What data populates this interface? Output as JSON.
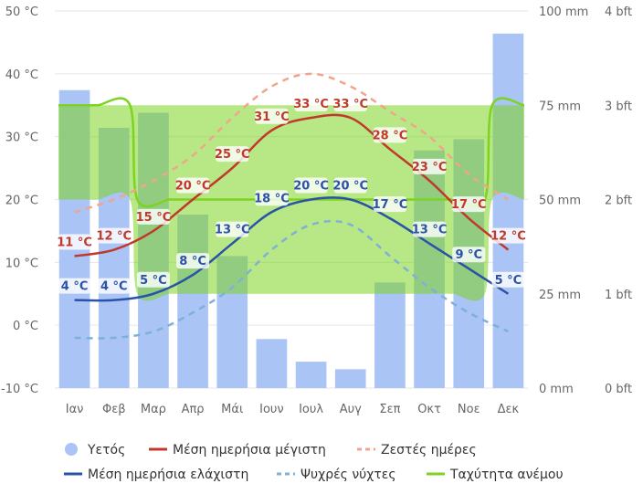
{
  "chart_data": {
    "type": "line",
    "months": [
      "Ιαν",
      "Φεβ",
      "Μαρ",
      "Απρ",
      "Μάι",
      "Ιουν",
      "Ιουλ",
      "Αυγ",
      "Σεπ",
      "Οκτ",
      "Νοε",
      "Δεκ"
    ],
    "temp_axis": {
      "min": -10,
      "max": 50,
      "ticks": [
        "-10 °C",
        "0 °C",
        "10 °C",
        "20 °C",
        "30 °C",
        "40 °C",
        "50 °C"
      ]
    },
    "precip_axis": {
      "min": 0,
      "max": 100,
      "ticks": [
        "0 mm",
        "25 mm",
        "50 mm",
        "75 mm",
        "100 mm"
      ]
    },
    "wind_axis": {
      "min": 0,
      "max": 4,
      "ticks": [
        "0 bft",
        "1 bft",
        "2 bft",
        "3 bft",
        "4 bft"
      ]
    },
    "series": [
      {
        "key": "precip",
        "name": "Υετός",
        "color": "#a9c4f5",
        "values": [
          79,
          69,
          73,
          46,
          35,
          13,
          7,
          5,
          28,
          63,
          66,
          94
        ]
      },
      {
        "key": "max",
        "name": "Μέση ημερήσια μέγιστη",
        "color": "#c0392b",
        "values": [
          11,
          12,
          15,
          20,
          25,
          31,
          33,
          33,
          28,
          23,
          17,
          12
        ],
        "labels": [
          "11 °C",
          "12 °C",
          "15 °C",
          "20 °C",
          "25 °C",
          "31 °C",
          "33 °C",
          "33 °C",
          "28 °C",
          "23 °C",
          "17 °C",
          "12 °C"
        ]
      },
      {
        "key": "hot",
        "name": "Ζεστές ημέρες",
        "color": "#f0a58c",
        "values": [
          18,
          20,
          23,
          27,
          33,
          38,
          40,
          38,
          34,
          30,
          24,
          20
        ]
      },
      {
        "key": "min",
        "name": "Μέση ημερήσια ελάχιστη",
        "color": "#2a52a8",
        "values": [
          4,
          4,
          5,
          8,
          13,
          18,
          20,
          20,
          17,
          13,
          9,
          5
        ],
        "labels": [
          "4 °C",
          "4 °C",
          "5 °C",
          "8 °C",
          "13 °C",
          "18 °C",
          "20 °C",
          "20 °C",
          "17 °C",
          "13 °C",
          "9 °C",
          "5 °C"
        ]
      },
      {
        "key": "cold",
        "name": "Ψυχρές νύχτες",
        "color": "#7fb0d8",
        "values": [
          -2,
          -2,
          -1,
          2,
          6,
          12,
          16,
          16,
          11,
          6,
          2,
          -1
        ]
      },
      {
        "key": "wind",
        "name": "Ταχύτητα ανέμου",
        "color": "#7ed321",
        "upper": [
          3,
          3,
          3,
          3,
          3,
          3,
          3,
          3,
          3,
          3,
          3,
          3
        ],
        "lower": [
          2,
          2,
          1,
          1,
          1,
          1,
          1,
          1,
          1,
          1,
          1,
          2
        ],
        "center": [
          3,
          3,
          2,
          2,
          2,
          2,
          2,
          2,
          2,
          2,
          2,
          3
        ]
      }
    ]
  }
}
